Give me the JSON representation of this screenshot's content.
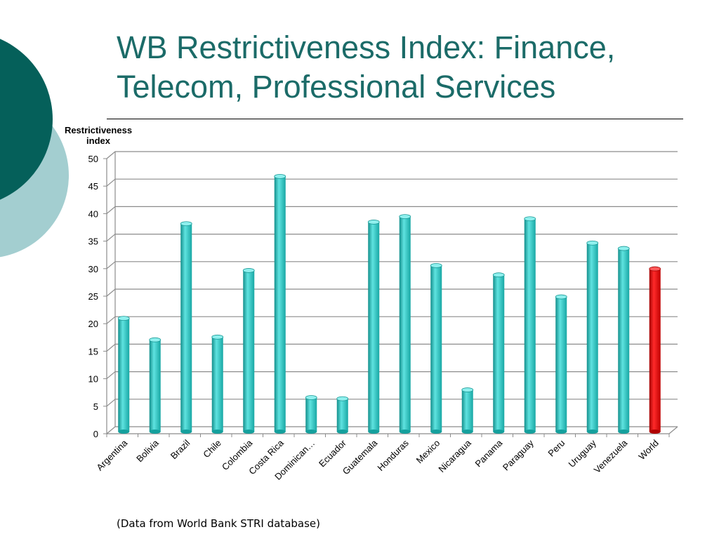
{
  "slide": {
    "title_line1": "WB Restrictiveness Index: Finance,",
    "title_line2": "Telecom, Professional Services",
    "source_note": "(Data from World Bank STRI database)"
  },
  "colors": {
    "title": "#1b6b68",
    "deco_dark": "#05605a",
    "deco_light": "#a3ced0",
    "bar_default": "#2ec9c6",
    "bar_highlight": "#e00000"
  },
  "chart_data": {
    "type": "bar",
    "title": "",
    "ylabel_line1": "Restrictiveness",
    "ylabel_line2": "index",
    "xlabel": "",
    "ylim": [
      0,
      50
    ],
    "yticks": [
      0,
      5,
      10,
      15,
      20,
      25,
      30,
      35,
      40,
      45,
      50
    ],
    "grid": true,
    "categories": [
      "Argentina",
      "Bolivia",
      "Brazil",
      "Chile",
      "Colombia",
      "Costa Rica",
      "Dominican…",
      "Ecuador",
      "Guatemala",
      "Honduras",
      "Mexico",
      "Nicaragua",
      "Panama",
      "Paraguay",
      "Peru",
      "Uruguay",
      "Venezuela",
      "World"
    ],
    "values": [
      20.2,
      16.3,
      37.4,
      16.8,
      28.9,
      46.0,
      5.8,
      5.6,
      37.7,
      38.7,
      29.8,
      7.2,
      28.1,
      38.3,
      24.1,
      33.9,
      32.9,
      29.2
    ],
    "highlight": "World"
  }
}
